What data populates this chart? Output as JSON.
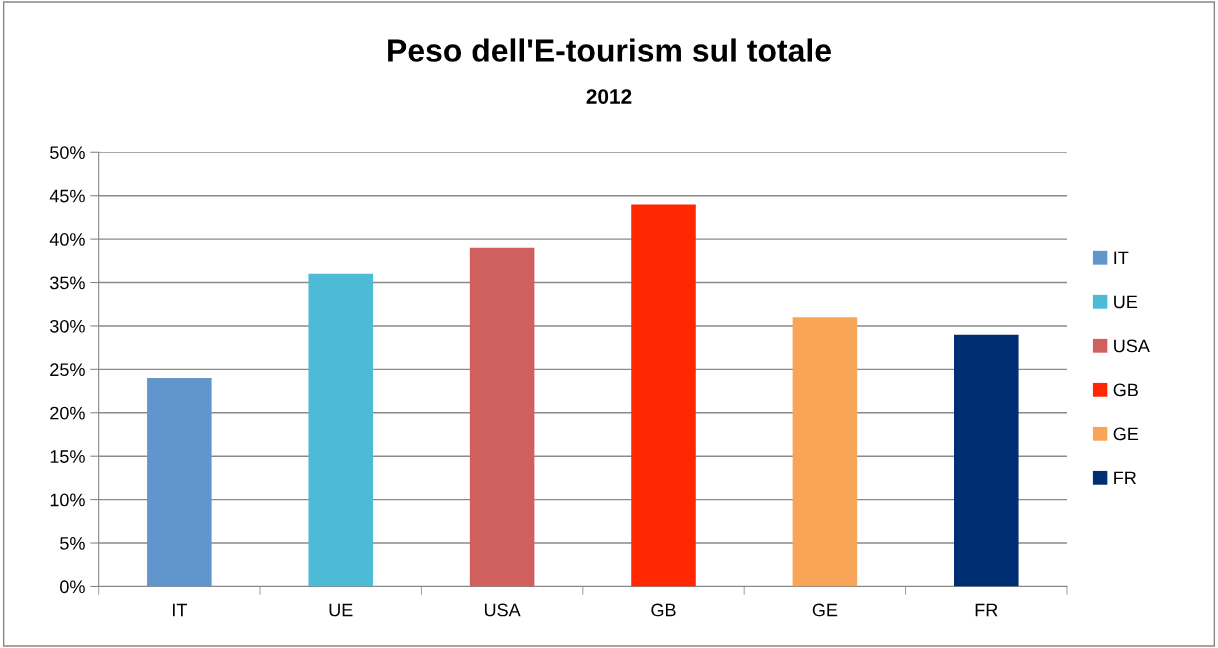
{
  "chart_data": {
    "type": "bar",
    "title": "Peso dell'E-tourism sul totale",
    "subtitle": "2012",
    "categories": [
      "IT",
      "UE",
      "USA",
      "GB",
      "GE",
      "FR"
    ],
    "series": [
      {
        "name": "IT",
        "color": "#6096cc",
        "values": [
          24,
          null,
          null,
          null,
          null,
          null
        ]
      },
      {
        "name": "UE",
        "color": "#4dbbd5",
        "values": [
          null,
          36,
          null,
          null,
          null,
          null
        ]
      },
      {
        "name": "USA",
        "color": "#d0605e",
        "values": [
          null,
          null,
          39,
          null,
          null,
          null
        ]
      },
      {
        "name": "GB",
        "color": "#ff2600",
        "values": [
          null,
          null,
          null,
          44,
          null,
          null
        ]
      },
      {
        "name": "GE",
        "color": "#f9a557",
        "values": [
          null,
          null,
          null,
          null,
          31,
          null
        ]
      },
      {
        "name": "FR",
        "color": "#002e72",
        "values": [
          null,
          null,
          null,
          null,
          null,
          29
        ]
      }
    ],
    "ylim": [
      0,
      50
    ],
    "yticks": [
      {
        "value": 0,
        "label": "0%"
      },
      {
        "value": 5,
        "label": "5%"
      },
      {
        "value": 10,
        "label": "10%"
      },
      {
        "value": 15,
        "label": "15%"
      },
      {
        "value": 20,
        "label": "20%"
      },
      {
        "value": 25,
        "label": "25%"
      },
      {
        "value": 30,
        "label": "30%"
      },
      {
        "value": 35,
        "label": "35%"
      },
      {
        "value": 40,
        "label": "40%"
      },
      {
        "value": 45,
        "label": "45%"
      },
      {
        "value": 50,
        "label": "50%"
      }
    ],
    "grid": "y",
    "legend": "right"
  }
}
